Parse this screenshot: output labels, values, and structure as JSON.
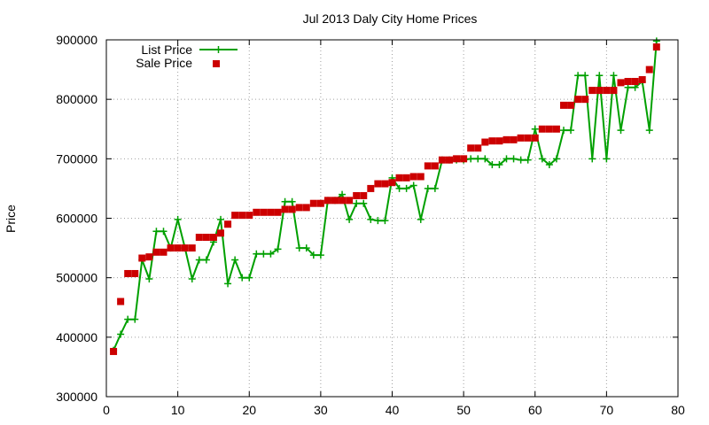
{
  "chart_data": {
    "type": "line",
    "title": "Jul 2013 Daly City Home Prices",
    "xlabel": "",
    "ylabel": "Price",
    "xlim": [
      0,
      80
    ],
    "ylim": [
      300000,
      900000
    ],
    "xticks": [
      0,
      10,
      20,
      30,
      40,
      50,
      60,
      70,
      80
    ],
    "yticks": [
      300000,
      400000,
      500000,
      600000,
      700000,
      800000,
      900000
    ],
    "xtick_labels": [
      "0",
      "10",
      "20",
      "30",
      "40",
      "50",
      "60",
      "70",
      "80"
    ],
    "ytick_labels": [
      "300000",
      "400000",
      "500000",
      "600000",
      "700000",
      "800000",
      "900000"
    ],
    "grid": true,
    "legend_position": "top-left",
    "series": [
      {
        "name": "List Price",
        "style": "line-plus",
        "color": "#00a000",
        "x": [
          1,
          2,
          3,
          4,
          5,
          6,
          7,
          8,
          9,
          10,
          11,
          12,
          13,
          14,
          15,
          16,
          17,
          18,
          19,
          20,
          21,
          22,
          23,
          24,
          25,
          26,
          27,
          28,
          29,
          30,
          31,
          32,
          33,
          34,
          35,
          36,
          37,
          38,
          39,
          40,
          41,
          42,
          43,
          44,
          45,
          46,
          47,
          48,
          49,
          50,
          51,
          52,
          53,
          54,
          55,
          56,
          57,
          58,
          59,
          60,
          61,
          62,
          63,
          64,
          65,
          66,
          67,
          68,
          69,
          70,
          71,
          72,
          73,
          74,
          75,
          76,
          77
        ],
        "y": [
          378000,
          405000,
          430000,
          430000,
          530000,
          498000,
          578000,
          578000,
          550000,
          598000,
          550000,
          498000,
          530000,
          530000,
          560000,
          598000,
          490000,
          530000,
          500000,
          500000,
          540000,
          540000,
          540000,
          548000,
          628000,
          628000,
          550000,
          550000,
          538000,
          538000,
          630000,
          630000,
          640000,
          598000,
          625000,
          625000,
          598000,
          596000,
          596000,
          668000,
          650000,
          650000,
          655000,
          598000,
          650000,
          650000,
          698000,
          698000,
          698000,
          698000,
          700000,
          700000,
          700000,
          690000,
          690000,
          700000,
          700000,
          698000,
          698000,
          750000,
          700000,
          690000,
          700000,
          748000,
          748000,
          840000,
          840000,
          700000,
          840000,
          700000,
          840000,
          748000,
          820000,
          820000,
          830000,
          748000,
          898000
        ]
      },
      {
        "name": "Sale Price",
        "style": "square",
        "color": "#cc0000",
        "x": [
          1,
          2,
          3,
          4,
          5,
          6,
          7,
          8,
          9,
          10,
          11,
          12,
          13,
          14,
          15,
          16,
          17,
          18,
          19,
          20,
          21,
          22,
          23,
          24,
          25,
          26,
          27,
          28,
          29,
          30,
          31,
          32,
          33,
          34,
          35,
          36,
          37,
          38,
          39,
          40,
          41,
          42,
          43,
          44,
          45,
          46,
          47,
          48,
          49,
          50,
          51,
          52,
          53,
          54,
          55,
          56,
          57,
          58,
          59,
          60,
          61,
          62,
          63,
          64,
          65,
          66,
          67,
          68,
          69,
          70,
          71,
          72,
          73,
          74,
          75,
          76,
          77
        ],
        "y": [
          376000,
          460000,
          507000,
          507000,
          533000,
          535000,
          543000,
          543000,
          550000,
          550000,
          550000,
          550000,
          568000,
          568000,
          568000,
          575000,
          590000,
          605000,
          605000,
          605000,
          610000,
          610000,
          610000,
          610000,
          615000,
          615000,
          618000,
          618000,
          625000,
          625000,
          630000,
          630000,
          630000,
          630000,
          638000,
          638000,
          650000,
          658000,
          658000,
          660000,
          668000,
          668000,
          670000,
          670000,
          688000,
          688000,
          698000,
          698000,
          700000,
          700000,
          718000,
          718000,
          728000,
          730000,
          730000,
          732000,
          732000,
          735000,
          735000,
          735000,
          750000,
          750000,
          750000,
          790000,
          790000,
          800000,
          800000,
          815000,
          815000,
          815000,
          815000,
          828000,
          830000,
          830000,
          833000,
          850000,
          888000
        ]
      }
    ]
  }
}
